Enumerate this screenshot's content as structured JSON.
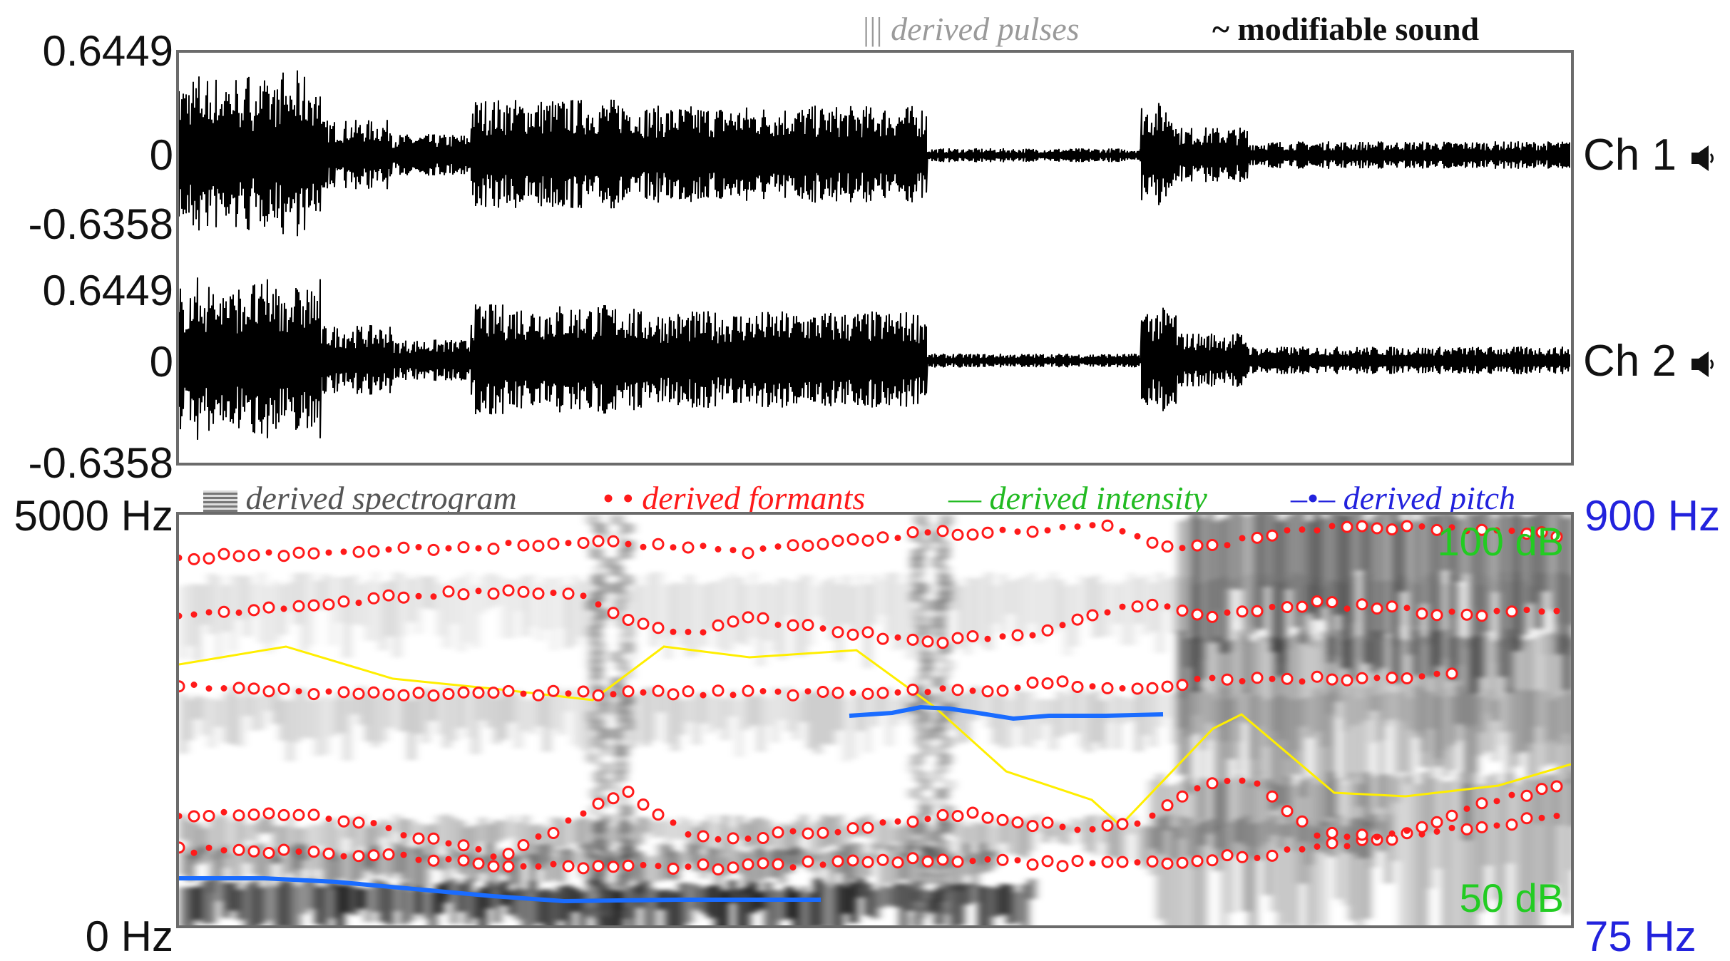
{
  "header": {
    "pulses_legend": "derived pulses",
    "sound_legend": "modifiable sound"
  },
  "waveform": {
    "channels": [
      {
        "label": "Ch 1",
        "y_max": "0.6449",
        "y_zero": "0",
        "y_min": "-0.6358"
      },
      {
        "label": "Ch 2",
        "y_max": "0.6449",
        "y_zero": "0",
        "y_min": "-0.6358"
      }
    ]
  },
  "spectrogram": {
    "legend": {
      "spectrogram": "derived spectrogram",
      "formants": "derived formants",
      "intensity": "derived intensity",
      "pitch": "derived pitch"
    },
    "freq_top": "5000 Hz",
    "freq_bottom": "0 Hz",
    "pitch_top": "900 Hz",
    "pitch_bottom": "75 Hz",
    "intensity_top": "100 dB",
    "intensity_bottom": "50 dB"
  },
  "colors": {
    "waveform": "#000000",
    "formants": "#ff1a1a",
    "intensity": "#ffee00",
    "pitch": "#1a6cff",
    "pitch_label": "#2222dd",
    "intensity_label": "#22cc22",
    "frame": "#6b6b6b"
  }
}
